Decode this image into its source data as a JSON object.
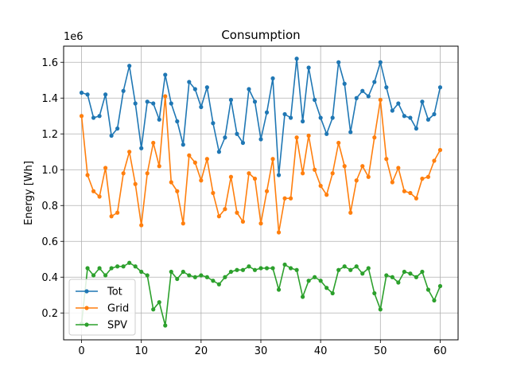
{
  "chart_data": {
    "type": "line",
    "title": "Consumption",
    "xlabel": "",
    "ylabel": "Energy [Wh]",
    "y_multiplier_label": "1e6",
    "xlim": [
      -3,
      63
    ],
    "ylim": [
      0.05,
      1.69
    ],
    "x_ticks": [
      0,
      10,
      20,
      30,
      40,
      50,
      60
    ],
    "y_ticks": [
      0.2,
      0.4,
      0.6,
      0.8,
      1.0,
      1.2,
      1.4,
      1.6
    ],
    "x_tick_labels": [
      "0",
      "10",
      "20",
      "30",
      "40",
      "50",
      "60"
    ],
    "y_tick_labels": [
      "0.2",
      "0.4",
      "0.6",
      "0.8",
      "1.0",
      "1.2",
      "1.4",
      "1.6"
    ],
    "grid": true,
    "legend_position": "lower-left",
    "x": [
      0,
      1,
      2,
      3,
      4,
      5,
      6,
      7,
      8,
      9,
      10,
      11,
      12,
      13,
      14,
      15,
      16,
      17,
      18,
      19,
      20,
      21,
      22,
      23,
      24,
      25,
      26,
      27,
      28,
      29,
      30,
      31,
      32,
      33,
      34,
      35,
      36,
      37,
      38,
      39,
      40,
      41,
      42,
      43,
      44,
      45,
      46,
      47,
      48,
      49,
      50,
      51,
      52,
      53,
      54,
      55,
      56,
      57,
      58,
      59,
      60
    ],
    "series": [
      {
        "name": "Tot",
        "color": "#1f77b4",
        "values": [
          1.43,
          1.42,
          1.29,
          1.3,
          1.42,
          1.19,
          1.23,
          1.44,
          1.58,
          1.37,
          1.12,
          1.38,
          1.37,
          1.28,
          1.53,
          1.37,
          1.27,
          1.14,
          1.49,
          1.45,
          1.35,
          1.46,
          1.26,
          1.1,
          1.18,
          1.39,
          1.2,
          1.15,
          1.45,
          1.38,
          1.17,
          1.32,
          1.51,
          0.97,
          1.31,
          1.29,
          1.62,
          1.27,
          1.57,
          1.39,
          1.29,
          1.2,
          1.29,
          1.6,
          1.48,
          1.21,
          1.4,
          1.44,
          1.41,
          1.49,
          1.6,
          1.46,
          1.33,
          1.37,
          1.3,
          1.29,
          1.23,
          1.38,
          1.28,
          1.31,
          1.46
        ]
      },
      {
        "name": "Grid",
        "color": "#ff7f0e",
        "values": [
          1.3,
          0.97,
          0.88,
          0.85,
          1.01,
          0.74,
          0.76,
          0.98,
          1.1,
          0.92,
          0.69,
          0.98,
          1.15,
          1.02,
          1.41,
          0.93,
          0.88,
          0.7,
          1.08,
          1.04,
          0.94,
          1.06,
          0.87,
          0.74,
          0.78,
          0.96,
          0.76,
          0.71,
          0.98,
          0.95,
          0.7,
          0.88,
          1.06,
          0.65,
          0.84,
          0.84,
          1.18,
          0.98,
          1.19,
          1.0,
          0.91,
          0.86,
          0.98,
          1.15,
          1.02,
          0.76,
          0.94,
          1.02,
          0.96,
          1.18,
          1.39,
          1.06,
          0.93,
          1.01,
          0.88,
          0.87,
          0.84,
          0.95,
          0.96,
          1.05,
          1.11
        ]
      },
      {
        "name": "SPV",
        "color": "#2ca02c",
        "values": [
          0.14,
          0.45,
          0.41,
          0.45,
          0.41,
          0.45,
          0.46,
          0.46,
          0.48,
          0.46,
          0.43,
          0.41,
          0.22,
          0.26,
          0.13,
          0.43,
          0.39,
          0.43,
          0.41,
          0.4,
          0.41,
          0.4,
          0.38,
          0.36,
          0.4,
          0.43,
          0.44,
          0.44,
          0.46,
          0.44,
          0.45,
          0.45,
          0.45,
          0.33,
          0.47,
          0.45,
          0.44,
          0.29,
          0.38,
          0.4,
          0.38,
          0.34,
          0.31,
          0.44,
          0.46,
          0.44,
          0.46,
          0.42,
          0.45,
          0.31,
          0.22,
          0.41,
          0.4,
          0.37,
          0.43,
          0.42,
          0.4,
          0.43,
          0.33,
          0.27,
          0.35
        ]
      }
    ]
  }
}
